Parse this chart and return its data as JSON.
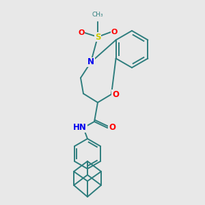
{
  "background_color": "#e8e8e8",
  "bond_color": "#2d7d7d",
  "atom_colors": {
    "N": "#0000ee",
    "O": "#ff0000",
    "S": "#cccc00",
    "C": "#2d7d7d"
  },
  "figsize": [
    3.0,
    3.0
  ],
  "dpi": 100,
  "lw": 1.4,
  "fs": 8.5
}
